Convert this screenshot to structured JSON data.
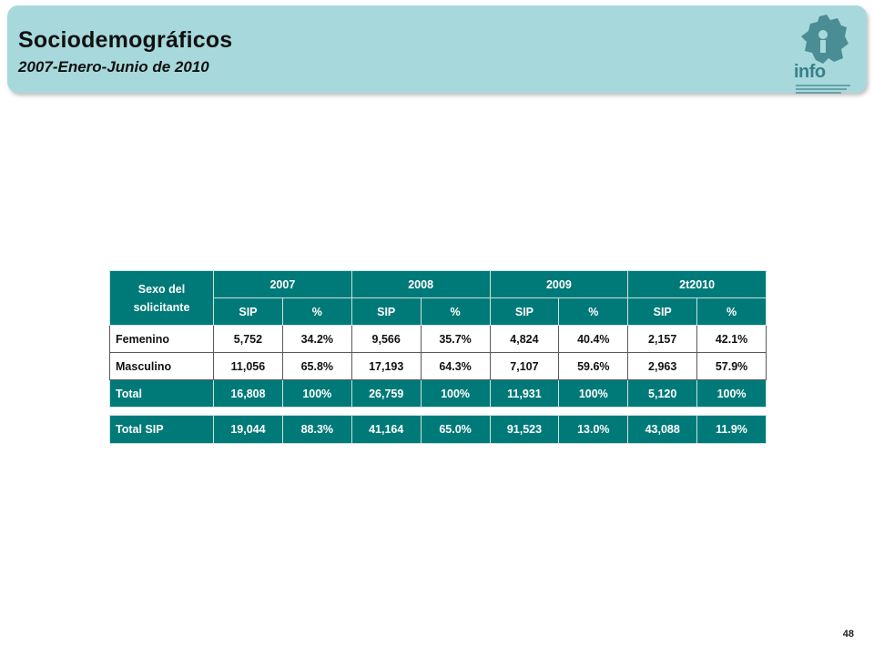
{
  "header": {
    "title": "Sociodemográficos",
    "subtitle": "2007-Enero-Junio de 2010",
    "logo_text": "info"
  },
  "colors": {
    "banner": "#a7d9dc",
    "table_header": "#007a78",
    "logo_teal": "#3a7f87"
  },
  "table": {
    "corner_label": "Sexo del solicitante",
    "years": [
      "2007",
      "2008",
      "2009",
      "2t2010"
    ],
    "sub_headers": [
      "SIP",
      "%",
      "SIP",
      "%",
      "SIP",
      "%",
      "SIP",
      "%"
    ],
    "rows": [
      {
        "label": "Femenino",
        "cells": [
          "5,752",
          "34.2%",
          "9,566",
          "35.7%",
          "4,824",
          "40.4%",
          "2,157",
          "42.1%"
        ]
      },
      {
        "label": "Masculino",
        "cells": [
          "11,056",
          "65.8%",
          "17,193",
          "64.3%",
          "7,107",
          "59.6%",
          "2,963",
          "57.9%"
        ]
      }
    ],
    "total": {
      "label": "Total",
      "cells": [
        "16,808",
        "100%",
        "26,759",
        "100%",
        "11,931",
        "100%",
        "5,120",
        "100%"
      ]
    }
  },
  "summary": {
    "label": "Total SIP",
    "cells": [
      "19,044",
      "88.3%",
      "41,164",
      "65.0%",
      "91,523",
      "13.0%",
      "43,088",
      "11.9%"
    ]
  },
  "footer": {
    "page_number": "48"
  }
}
